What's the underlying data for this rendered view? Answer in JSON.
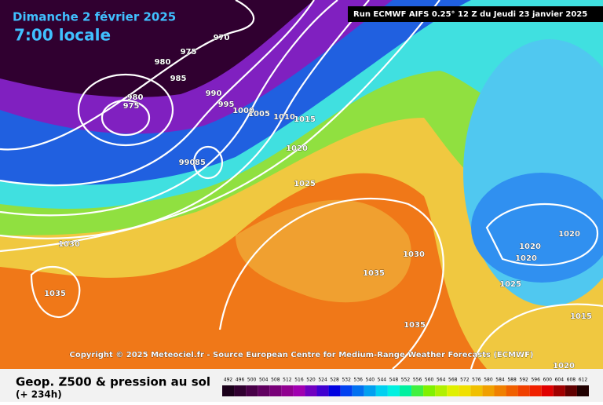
{
  "header": {
    "date": "Dimanche 2 février 2025",
    "time": "7:00 locale",
    "run": "Run ECMWF AIFS 0.25° 12 Z du Jeudi 23 janvier 2025"
  },
  "copyright": "Copyright © 2025 Meteociel.fr - Source European Centre for Medium-Range Weather Forecasts (ECMWF)",
  "footer": {
    "title": "Geop. Z500 & pression au sol",
    "lead": "(+ 234h)"
  },
  "isobar_labels": [
    970,
    975,
    980,
    985,
    990,
    995,
    1000,
    1005,
    1010,
    1015,
    980,
    975,
    1020,
    990,
    85,
    1025,
    1030,
    1035,
    1030,
    1035,
    1035,
    1020,
    1020,
    1020,
    1025,
    1015,
    1020
  ],
  "colorbar": {
    "labels": [
      492,
      496,
      500,
      504,
      508,
      512,
      516,
      520,
      524,
      528,
      532,
      536,
      540,
      544,
      548,
      552,
      556,
      560,
      564,
      568,
      572,
      576,
      580,
      584,
      588,
      592,
      596,
      600,
      604,
      608,
      612
    ],
    "colors": [
      "#1a001a",
      "#300030",
      "#480048",
      "#600060",
      "#780078",
      "#900090",
      "#a000b0",
      "#7000c0",
      "#4000d0",
      "#0000e0",
      "#0040f0",
      "#0070f0",
      "#00a0f0",
      "#00d0f0",
      "#00f0e0",
      "#00f0a0",
      "#40f040",
      "#80f000",
      "#b0f000",
      "#e0f000",
      "#f0e000",
      "#f0c000",
      "#f0a000",
      "#f08000",
      "#f06000",
      "#f04000",
      "#f02000",
      "#e00000",
      "#a00000",
      "#600000",
      "#200000"
    ]
  }
}
